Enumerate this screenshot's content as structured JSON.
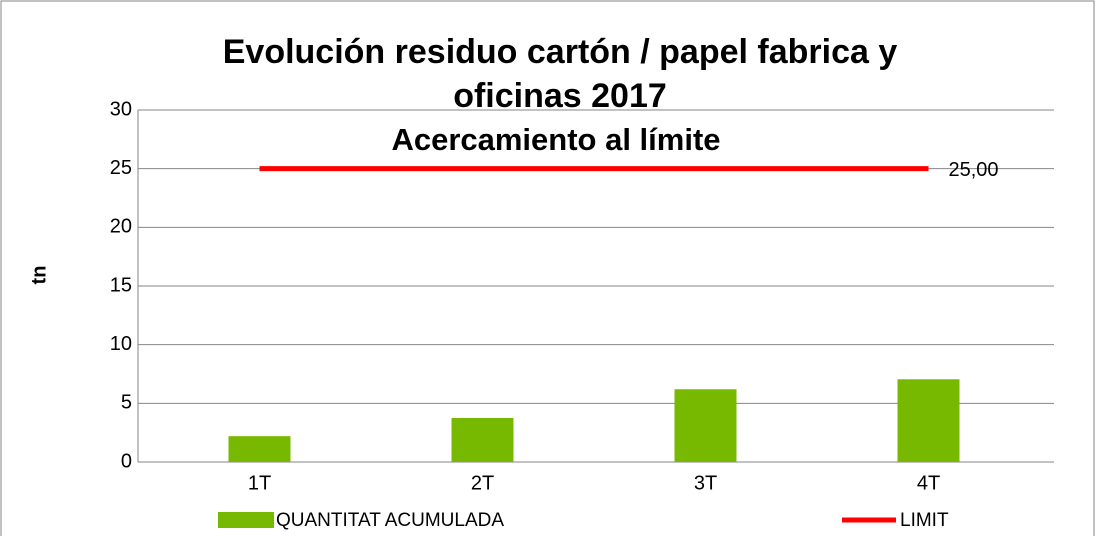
{
  "chart_data": {
    "type": "bar",
    "title": "Evolución residuo cartón / papel fabrica y oficinas 2017",
    "subtitle": "Acercamiento al límite",
    "y_label": "tn",
    "categories": [
      "1T",
      "2T",
      "3T",
      "4T"
    ],
    "series": [
      {
        "name": "QUANTITAT ACUMULADA",
        "type": "bar",
        "color": "#77b800",
        "values": [
          2.2,
          3.75,
          6.2,
          7.05
        ]
      },
      {
        "name": "LIMIT",
        "type": "line",
        "color": "#ff0000",
        "values": [
          25,
          25,
          25,
          25
        ],
        "value_labels": [
          null,
          null,
          null,
          "25,00"
        ]
      }
    ],
    "ylim": [
      0,
      30
    ],
    "yticks": [
      0,
      5,
      10,
      15,
      20,
      25,
      30
    ],
    "grid": true,
    "legend": "bottom"
  }
}
